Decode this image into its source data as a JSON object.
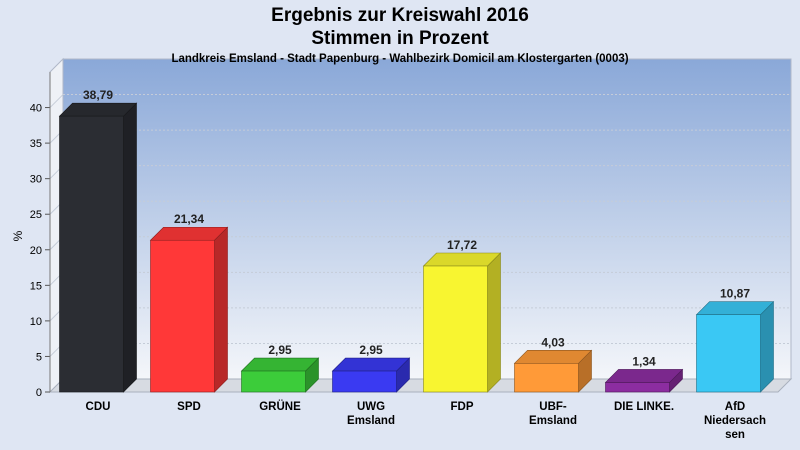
{
  "title_line1": "Ergebnis zur Kreiswahl 2016",
  "title_line2": "Stimmen in Prozent",
  "subtitle": "Landkreis Emsland - Stadt Papenburg - Wahlbezirk Domicil am Klostergarten (0003)",
  "chart_data": {
    "type": "bar",
    "title": "Ergebnis zur Kreiswahl 2016 Stimmen in Prozent",
    "subtitle": "Landkreis Emsland - Stadt Papenburg - Wahlbezirk Domicil am Klostergarten (0003)",
    "ylabel": "%",
    "xlabel": "",
    "ylim": [
      0,
      45
    ],
    "yticks": [
      0,
      5,
      10,
      15,
      20,
      25,
      30,
      35,
      40
    ],
    "grid": true,
    "categories": [
      [
        "CDU"
      ],
      [
        "SPD"
      ],
      [
        "GRÜNE"
      ],
      [
        "UWG",
        "Emsland"
      ],
      [
        "FDP"
      ],
      [
        "UBF-",
        "Emsland"
      ],
      [
        "DIE LINKE."
      ],
      [
        "AfD",
        "Niedersach",
        "sen"
      ]
    ],
    "values": [
      38.79,
      21.34,
      2.95,
      2.95,
      17.72,
      4.03,
      1.34,
      10.87
    ],
    "value_labels": [
      "38,79",
      "21,34",
      "2,95",
      "2,95",
      "17,72",
      "4,03",
      "1,34",
      "10,87"
    ],
    "colors": [
      "#2b2d33",
      "#ff3838",
      "#3ccc3a",
      "#3a3af2",
      "#f8f530",
      "#ff9a38",
      "#8c2da0",
      "#3ac8f4"
    ]
  }
}
